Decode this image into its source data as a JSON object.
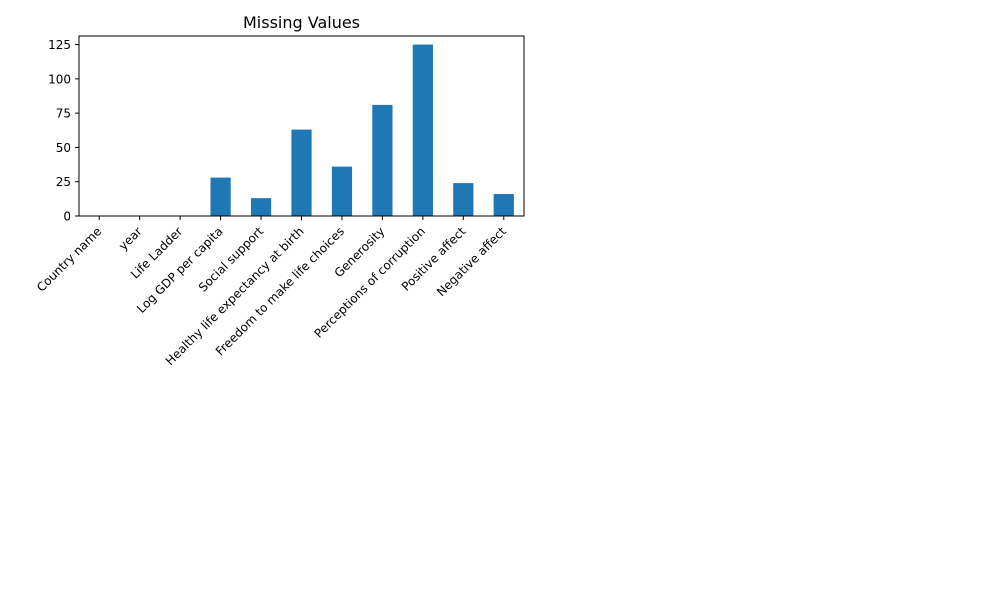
{
  "chart_data": {
    "type": "bar",
    "title": "Missing Values",
    "xlabel": "",
    "ylabel": "",
    "categories": [
      "Country name",
      "year",
      "Life Ladder",
      "Log GDP per capita",
      "Social support",
      "Healthy life expectancy at birth",
      "Freedom to make life choices",
      "Generosity",
      "Perceptions of corruption",
      "Positive affect",
      "Negative affect"
    ],
    "values": [
      0,
      0,
      0,
      28,
      13,
      63,
      36,
      81,
      125,
      24,
      16
    ],
    "ylim": [
      0,
      131.25
    ],
    "yticks": [
      0,
      25,
      50,
      75,
      100,
      125
    ],
    "bar_color": "#1f77b4",
    "grid": false,
    "legend": "none"
  }
}
